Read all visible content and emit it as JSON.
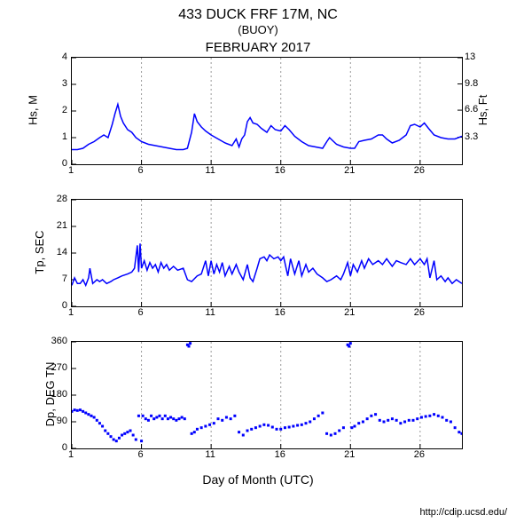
{
  "title": "433 DUCK FRF 17M, NC",
  "subtitle": "(BUOY)",
  "month": "FEBRUARY 2017",
  "xlabel": "Day of Month (UTC)",
  "credit": "http://cdip.ucsd.edu/",
  "xaxis": {
    "min": 1,
    "max": 29,
    "ticks": [
      1,
      6,
      11,
      16,
      21,
      26
    ]
  },
  "panels": [
    {
      "ylabel_left": "Hs, M",
      "ylabel_right": "Hs, Ft",
      "ymin": 0,
      "ymax": 4,
      "yticks_left": [
        0,
        1,
        2,
        3,
        4
      ],
      "yticks_right": [
        3.3,
        6.6,
        9.8,
        13
      ],
      "line_color": "#0000ff",
      "type": "line",
      "show_xticks": true,
      "points": [
        [
          1,
          0.55
        ],
        [
          1.4,
          0.55
        ],
        [
          1.8,
          0.6
        ],
        [
          2.2,
          0.75
        ],
        [
          2.6,
          0.85
        ],
        [
          3,
          1.0
        ],
        [
          3.3,
          1.1
        ],
        [
          3.6,
          1.0
        ],
        [
          3.9,
          1.5
        ],
        [
          4.1,
          1.9
        ],
        [
          4.3,
          2.25
        ],
        [
          4.5,
          1.8
        ],
        [
          4.7,
          1.55
        ],
        [
          5,
          1.3
        ],
        [
          5.3,
          1.2
        ],
        [
          5.6,
          1.0
        ],
        [
          6,
          0.85
        ],
        [
          6.5,
          0.75
        ],
        [
          7,
          0.7
        ],
        [
          7.5,
          0.65
        ],
        [
          8,
          0.6
        ],
        [
          8.5,
          0.55
        ],
        [
          9,
          0.55
        ],
        [
          9.3,
          0.6
        ],
        [
          9.6,
          1.2
        ],
        [
          9.8,
          1.9
        ],
        [
          10,
          1.6
        ],
        [
          10.3,
          1.4
        ],
        [
          10.6,
          1.25
        ],
        [
          11,
          1.1
        ],
        [
          11.5,
          0.95
        ],
        [
          12,
          0.8
        ],
        [
          12.5,
          0.7
        ],
        [
          12.8,
          0.95
        ],
        [
          13,
          0.65
        ],
        [
          13.2,
          0.95
        ],
        [
          13.4,
          1.1
        ],
        [
          13.6,
          1.6
        ],
        [
          13.8,
          1.75
        ],
        [
          14,
          1.55
        ],
        [
          14.3,
          1.5
        ],
        [
          14.6,
          1.35
        ],
        [
          15,
          1.2
        ],
        [
          15.3,
          1.45
        ],
        [
          15.6,
          1.3
        ],
        [
          16,
          1.25
        ],
        [
          16.3,
          1.45
        ],
        [
          16.6,
          1.3
        ],
        [
          17,
          1.05
        ],
        [
          17.5,
          0.85
        ],
        [
          18,
          0.7
        ],
        [
          18.5,
          0.65
        ],
        [
          19,
          0.6
        ],
        [
          19.3,
          0.85
        ],
        [
          19.5,
          1.0
        ],
        [
          19.8,
          0.85
        ],
        [
          20,
          0.75
        ],
        [
          20.5,
          0.65
        ],
        [
          21,
          0.6
        ],
        [
          21.3,
          0.6
        ],
        [
          21.6,
          0.85
        ],
        [
          22,
          0.9
        ],
        [
          22.5,
          0.95
        ],
        [
          23,
          1.1
        ],
        [
          23.3,
          1.1
        ],
        [
          23.6,
          0.95
        ],
        [
          24,
          0.8
        ],
        [
          24.5,
          0.9
        ],
        [
          25,
          1.1
        ],
        [
          25.3,
          1.45
        ],
        [
          25.6,
          1.5
        ],
        [
          26,
          1.4
        ],
        [
          26.3,
          1.55
        ],
        [
          26.6,
          1.35
        ],
        [
          27,
          1.1
        ],
        [
          27.5,
          1.0
        ],
        [
          28,
          0.95
        ],
        [
          28.5,
          0.95
        ],
        [
          29,
          1.05
        ]
      ]
    },
    {
      "ylabel_left": "Tp, SEC",
      "ymin": 0,
      "ymax": 28,
      "yticks_left": [
        0,
        7,
        14,
        21,
        28
      ],
      "line_color": "#0000ff",
      "type": "line",
      "show_xticks": true,
      "points": [
        [
          1,
          5.5
        ],
        [
          1.2,
          7.5
        ],
        [
          1.4,
          6
        ],
        [
          1.6,
          6
        ],
        [
          1.8,
          7
        ],
        [
          2,
          5.5
        ],
        [
          2.2,
          7.5
        ],
        [
          2.3,
          10
        ],
        [
          2.5,
          6
        ],
        [
          2.8,
          7
        ],
        [
          3,
          6.5
        ],
        [
          3.2,
          7
        ],
        [
          3.5,
          6
        ],
        [
          3.8,
          6.5
        ],
        [
          4,
          7
        ],
        [
          4.3,
          7.5
        ],
        [
          4.6,
          8
        ],
        [
          5,
          8.5
        ],
        [
          5.3,
          9
        ],
        [
          5.5,
          10
        ],
        [
          5.7,
          16
        ],
        [
          5.8,
          9
        ],
        [
          5.9,
          16.5
        ],
        [
          6,
          10
        ],
        [
          6.2,
          12
        ],
        [
          6.4,
          9.5
        ],
        [
          6.6,
          11.5
        ],
        [
          6.8,
          10
        ],
        [
          7,
          11
        ],
        [
          7.2,
          9
        ],
        [
          7.4,
          11.5
        ],
        [
          7.6,
          10
        ],
        [
          7.8,
          11
        ],
        [
          8,
          9.5
        ],
        [
          8.3,
          10.5
        ],
        [
          8.6,
          9.5
        ],
        [
          9,
          10
        ],
        [
          9.3,
          7
        ],
        [
          9.6,
          6.5
        ],
        [
          10,
          8
        ],
        [
          10.3,
          8.5
        ],
        [
          10.6,
          12
        ],
        [
          10.8,
          8
        ],
        [
          11,
          12
        ],
        [
          11.2,
          8.5
        ],
        [
          11.4,
          11
        ],
        [
          11.6,
          9
        ],
        [
          11.8,
          11.5
        ],
        [
          12,
          8
        ],
        [
          12.3,
          10.5
        ],
        [
          12.5,
          8.5
        ],
        [
          12.8,
          11
        ],
        [
          13,
          9
        ],
        [
          13.3,
          7
        ],
        [
          13.6,
          11
        ],
        [
          13.8,
          7.5
        ],
        [
          14,
          6.5
        ],
        [
          14.3,
          10
        ],
        [
          14.5,
          12.5
        ],
        [
          14.8,
          13
        ],
        [
          15,
          12
        ],
        [
          15.2,
          13.5
        ],
        [
          15.5,
          12.5
        ],
        [
          15.8,
          13
        ],
        [
          16,
          12
        ],
        [
          16.2,
          13
        ],
        [
          16.5,
          8
        ],
        [
          16.7,
          12.5
        ],
        [
          17,
          8.5
        ],
        [
          17.3,
          12
        ],
        [
          17.5,
          8
        ],
        [
          17.8,
          11
        ],
        [
          18,
          9
        ],
        [
          18.3,
          10
        ],
        [
          18.6,
          8.5
        ],
        [
          19,
          7.5
        ],
        [
          19.3,
          6.5
        ],
        [
          19.6,
          7
        ],
        [
          20,
          8
        ],
        [
          20.3,
          7
        ],
        [
          20.5,
          8.5
        ],
        [
          20.8,
          11.5
        ],
        [
          21,
          8
        ],
        [
          21.2,
          11
        ],
        [
          21.5,
          9
        ],
        [
          21.8,
          12
        ],
        [
          22,
          10
        ],
        [
          22.3,
          12.5
        ],
        [
          22.6,
          11
        ],
        [
          23,
          12
        ],
        [
          23.3,
          11
        ],
        [
          23.6,
          12.5
        ],
        [
          24,
          10.5
        ],
        [
          24.3,
          12
        ],
        [
          24.6,
          11.5
        ],
        [
          25,
          11
        ],
        [
          25.3,
          12.5
        ],
        [
          25.6,
          11
        ],
        [
          26,
          12.5
        ],
        [
          26.3,
          11
        ],
        [
          26.5,
          12.5
        ],
        [
          26.7,
          7.5
        ],
        [
          27,
          12
        ],
        [
          27.2,
          7
        ],
        [
          27.5,
          8
        ],
        [
          27.8,
          6.5
        ],
        [
          28,
          7.5
        ],
        [
          28.3,
          6
        ],
        [
          28.6,
          7
        ],
        [
          29,
          6
        ]
      ]
    },
    {
      "ylabel_left": "Dp, DEG TN",
      "ymin": 0,
      "ymax": 360,
      "yticks_left": [
        0,
        90,
        180,
        270,
        360
      ],
      "line_color": "#0000ff",
      "type": "scatter",
      "show_xticks": true,
      "points": [
        [
          1,
          125
        ],
        [
          1.2,
          130
        ],
        [
          1.4,
          128
        ],
        [
          1.6,
          130
        ],
        [
          1.8,
          125
        ],
        [
          2,
          120
        ],
        [
          2.2,
          115
        ],
        [
          2.4,
          110
        ],
        [
          2.6,
          105
        ],
        [
          2.8,
          95
        ],
        [
          3,
          85
        ],
        [
          3.2,
          75
        ],
        [
          3.4,
          60
        ],
        [
          3.6,
          50
        ],
        [
          3.8,
          40
        ],
        [
          4,
          30
        ],
        [
          4.2,
          25
        ],
        [
          4.4,
          35
        ],
        [
          4.6,
          45
        ],
        [
          4.8,
          50
        ],
        [
          5,
          55
        ],
        [
          5.2,
          60
        ],
        [
          5.4,
          45
        ],
        [
          5.6,
          30
        ],
        [
          5.8,
          110
        ],
        [
          6,
          25
        ],
        [
          6.1,
          110
        ],
        [
          6.3,
          100
        ],
        [
          6.5,
          95
        ],
        [
          6.7,
          110
        ],
        [
          6.9,
          100
        ],
        [
          7.1,
          105
        ],
        [
          7.3,
          110
        ],
        [
          7.5,
          100
        ],
        [
          7.7,
          110
        ],
        [
          7.9,
          100
        ],
        [
          8.1,
          105
        ],
        [
          8.3,
          100
        ],
        [
          8.5,
          95
        ],
        [
          8.7,
          100
        ],
        [
          8.9,
          105
        ],
        [
          9.1,
          100
        ],
        [
          9.3,
          350
        ],
        [
          9.4,
          345
        ],
        [
          9.5,
          355
        ],
        [
          9.6,
          50
        ],
        [
          9.8,
          55
        ],
        [
          10,
          65
        ],
        [
          10.3,
          70
        ],
        [
          10.6,
          75
        ],
        [
          10.9,
          80
        ],
        [
          11.2,
          85
        ],
        [
          11.5,
          100
        ],
        [
          11.8,
          95
        ],
        [
          12.1,
          105
        ],
        [
          12.4,
          100
        ],
        [
          12.7,
          110
        ],
        [
          13,
          55
        ],
        [
          13.3,
          45
        ],
        [
          13.6,
          60
        ],
        [
          13.9,
          65
        ],
        [
          14.2,
          70
        ],
        [
          14.5,
          75
        ],
        [
          14.8,
          80
        ],
        [
          15.1,
          78
        ],
        [
          15.4,
          72
        ],
        [
          15.7,
          65
        ],
        [
          16,
          65
        ],
        [
          16.3,
          70
        ],
        [
          16.6,
          72
        ],
        [
          16.9,
          75
        ],
        [
          17.2,
          78
        ],
        [
          17.5,
          80
        ],
        [
          17.8,
          85
        ],
        [
          18.1,
          90
        ],
        [
          18.4,
          100
        ],
        [
          18.7,
          110
        ],
        [
          19,
          120
        ],
        [
          19.3,
          50
        ],
        [
          19.6,
          45
        ],
        [
          19.9,
          50
        ],
        [
          20.2,
          60
        ],
        [
          20.5,
          70
        ],
        [
          20.8,
          350
        ],
        [
          20.9,
          345
        ],
        [
          21.0,
          355
        ],
        [
          21.1,
          70
        ],
        [
          21.3,
          75
        ],
        [
          21.6,
          85
        ],
        [
          21.9,
          90
        ],
        [
          22.2,
          100
        ],
        [
          22.5,
          110
        ],
        [
          22.8,
          115
        ],
        [
          23.1,
          95
        ],
        [
          23.4,
          90
        ],
        [
          23.7,
          95
        ],
        [
          24,
          100
        ],
        [
          24.3,
          95
        ],
        [
          24.6,
          85
        ],
        [
          24.9,
          90
        ],
        [
          25.2,
          95
        ],
        [
          25.5,
          95
        ],
        [
          25.8,
          100
        ],
        [
          26.1,
          105
        ],
        [
          26.4,
          108
        ],
        [
          26.7,
          110
        ],
        [
          27,
          115
        ],
        [
          27.3,
          110
        ],
        [
          27.6,
          105
        ],
        [
          27.9,
          95
        ],
        [
          28.2,
          90
        ],
        [
          28.5,
          70
        ],
        [
          28.8,
          55
        ],
        [
          29,
          50
        ]
      ]
    }
  ]
}
